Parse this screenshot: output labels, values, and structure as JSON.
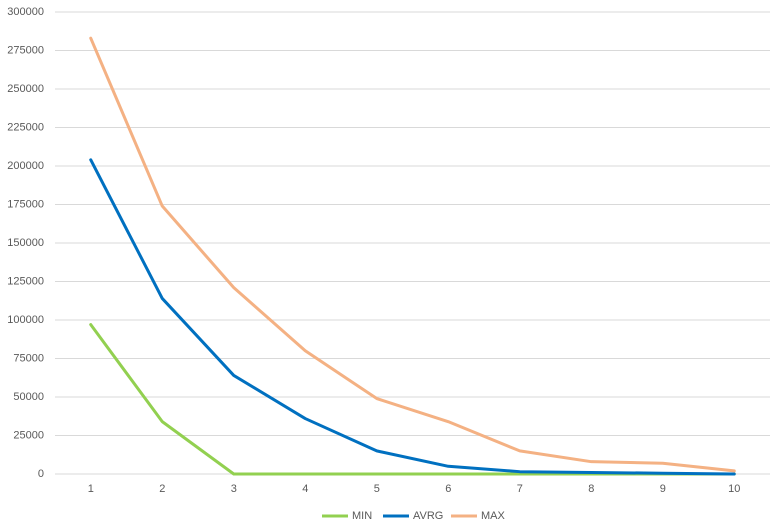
{
  "chart_data": {
    "type": "line",
    "categories": [
      "1",
      "2",
      "3",
      "4",
      "5",
      "6",
      "7",
      "8",
      "9",
      "10"
    ],
    "series": [
      {
        "name": "MIN",
        "color": "#92d050",
        "values": [
          97000,
          34000,
          0,
          0,
          0,
          0,
          0,
          0,
          0,
          0
        ]
      },
      {
        "name": "AVRG",
        "color": "#0070c0",
        "values": [
          204000,
          114000,
          64000,
          36000,
          15000,
          5000,
          1500,
          1000,
          500,
          0
        ]
      },
      {
        "name": "MAX",
        "color": "#f4b183",
        "values": [
          283000,
          174000,
          121000,
          80000,
          49000,
          34000,
          15000,
          8000,
          7000,
          2000
        ]
      }
    ],
    "ylim": [
      0,
      300000
    ],
    "yticks": [
      0,
      25000,
      50000,
      75000,
      100000,
      125000,
      150000,
      175000,
      200000,
      225000,
      250000,
      275000,
      300000
    ],
    "grid": true,
    "legend": "bottom"
  }
}
